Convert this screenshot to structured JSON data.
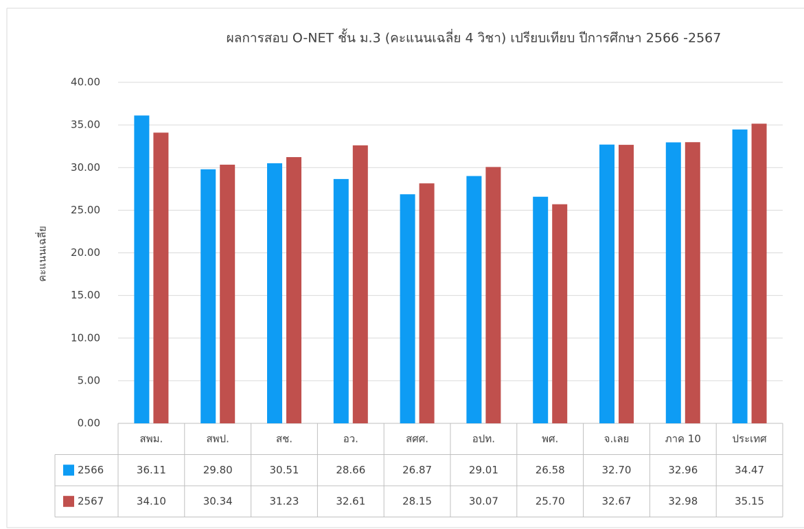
{
  "chart_data": {
    "type": "bar",
    "title": "ผลการสอบ O-NET ชั้น ม.3 (คะแนนเฉลี่ย 4 วิชา) เปรียบเทียบ ปีการศึกษา 2566 -2567",
    "y_label": "คะแนนเฉลี่ย",
    "categories": [
      "สพม.",
      "สพป.",
      "สช.",
      "อว.",
      "สศศ.",
      "อปท.",
      "พศ.",
      "จ.เลย",
      "ภาค 10",
      "ประเทศ"
    ],
    "series": [
      {
        "name": "2566",
        "color": "#0e9cf4",
        "values": [
          36.11,
          29.8,
          30.51,
          28.66,
          26.87,
          29.01,
          26.58,
          32.7,
          32.96,
          34.47
        ],
        "value_labels": [
          "36.11",
          "29.80",
          "30.51",
          "28.66",
          "26.87",
          "29.01",
          "26.58",
          "32.70",
          "32.96",
          "34.47"
        ]
      },
      {
        "name": "2567",
        "color": "#c0504d",
        "values": [
          34.1,
          30.34,
          31.23,
          32.61,
          28.15,
          30.07,
          25.7,
          32.67,
          32.98,
          35.15
        ],
        "value_labels": [
          "34.10",
          "30.34",
          "31.23",
          "32.61",
          "28.15",
          "30.07",
          "25.70",
          "32.67",
          "32.98",
          "35.15"
        ]
      }
    ],
    "ylim": [
      0,
      40
    ],
    "yticks": [
      {
        "value": 0,
        "label": "0.00"
      },
      {
        "value": 5,
        "label": "5.00"
      },
      {
        "value": 10,
        "label": "10.00"
      },
      {
        "value": 15,
        "label": "15.00"
      },
      {
        "value": 20,
        "label": "20.00"
      },
      {
        "value": 25,
        "label": "25.00"
      },
      {
        "value": 30,
        "label": "30.00"
      },
      {
        "value": 35,
        "label": "35.00"
      },
      {
        "value": 40,
        "label": "40.00"
      }
    ],
    "grid": true
  }
}
